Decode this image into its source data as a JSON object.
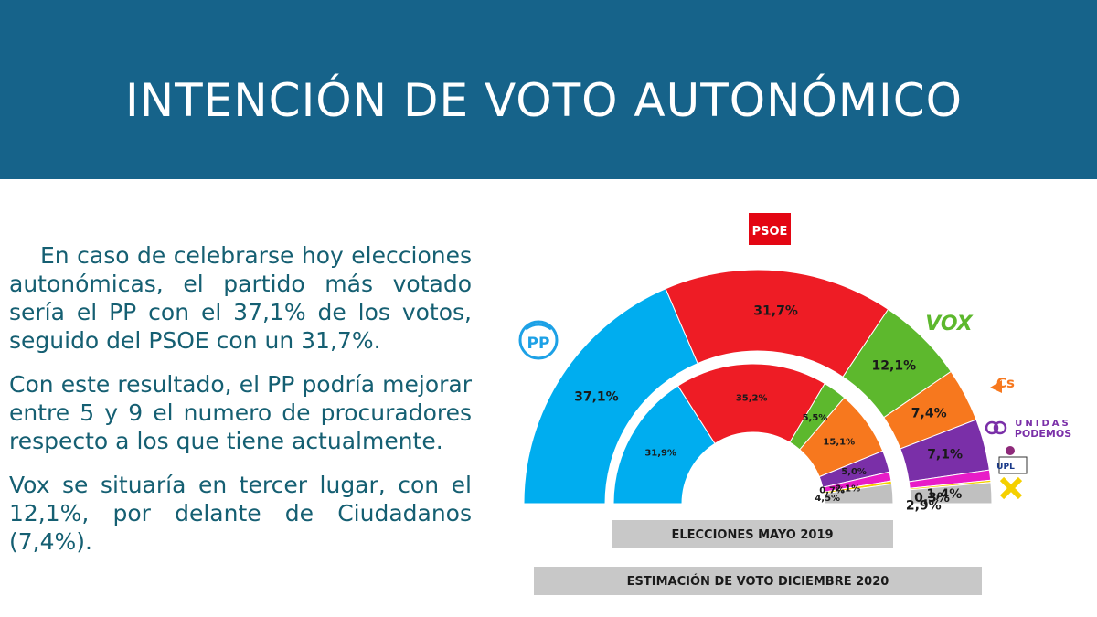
{
  "header": {
    "title": "INTENCIÓN DE VOTO AUTONÓMICO"
  },
  "text": {
    "p1": "En caso de celebrarse hoy elecciones autonómicas, el partido más votado sería el PP con el 37,1% de los votos, seguido del PSOE con un 31,7%.",
    "p2": "Con este resultado, el PP podría mejorar entre 5 y 9 el numero de procuradores respecto a los que tiene actualmente.",
    "p3": "Vox se situaría en tercer lugar, con el 12,1%, por delante de Ciudadanos (7,4%)."
  },
  "logos": {
    "psoe": "PSOE",
    "pp": "PP",
    "vox": "VOX",
    "cs": "Cs",
    "podemos_line1": "UNIDAS",
    "podemos_line2": "PODEMOS",
    "upl": "UPL"
  },
  "colors": {
    "PP": "#00adef",
    "PSOE": "#ee1c25",
    "Vox": "#5db82d",
    "Cs": "#f7781e",
    "Podemos": "#7a2fa8",
    "UPL": "#e81cc8",
    "Otros": "#c0c0c0",
    "header": "#16638a",
    "text": "#155f72"
  },
  "chart_data": [
    {
      "type": "pie",
      "subtype": "hemicycle",
      "title": "ESTIMACIÓN DE VOTO DICIEMBRE 2020",
      "series": [
        {
          "name": "PP",
          "value": 37.1,
          "label": "37,1%"
        },
        {
          "name": "PSOE",
          "value": 31.7,
          "label": "31,7%"
        },
        {
          "name": "Vox",
          "value": 12.1,
          "label": "12,1%"
        },
        {
          "name": "Cs",
          "value": 7.4,
          "label": "7,4%"
        },
        {
          "name": "Podemos",
          "value": 7.1,
          "label": "7,1%"
        },
        {
          "name": "UPL",
          "value": 1.4,
          "label": "1,4%"
        },
        {
          "name": "XAV",
          "value": 0.3,
          "label": "0,3%"
        },
        {
          "name": "Otros",
          "value": 2.9,
          "label": "2,9%"
        }
      ]
    },
    {
      "type": "pie",
      "subtype": "hemicycle",
      "title": "ELECCIONES MAYO 2019",
      "series": [
        {
          "name": "PP",
          "value": 31.9,
          "label": "31,9%"
        },
        {
          "name": "PSOE",
          "value": 35.2,
          "label": "35,2%"
        },
        {
          "name": "Vox",
          "value": 5.5,
          "label": "5,5%"
        },
        {
          "name": "Cs",
          "value": 15.1,
          "label": "15,1%"
        },
        {
          "name": "Podemos",
          "value": 5.0,
          "label": "5,0%"
        },
        {
          "name": "UPL",
          "value": 2.1,
          "label": "2,1%"
        },
        {
          "name": "XAV",
          "value": 0.7,
          "label": "0,7%"
        },
        {
          "name": "Otros",
          "value": 4.5,
          "label": "4,5%"
        }
      ]
    }
  ]
}
